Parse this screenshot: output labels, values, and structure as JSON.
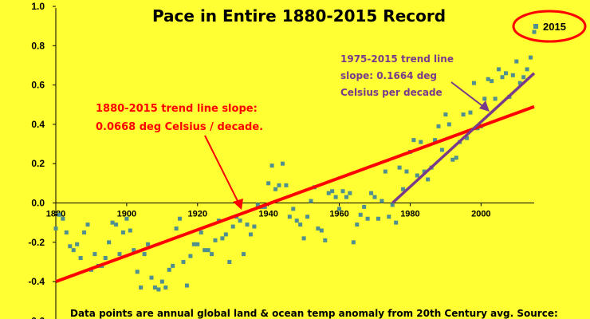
{
  "chart_data": {
    "type": "scatter",
    "title": "Pace in Entire 1880-2015 Record",
    "xlim": [
      1880,
      2015
    ],
    "ylim": [
      -0.6,
      1.0
    ],
    "yticks": [
      "1.0",
      "0.8",
      "0.6",
      "0.4",
      "0.2",
      "0.0",
      "-0.2",
      "-0.4",
      "-0.6"
    ],
    "xticks": [
      "1880",
      "1900",
      "1920",
      "1940",
      "1960",
      "1980",
      "2000"
    ],
    "grid": false,
    "legend": {
      "placement": "top-right",
      "label": "2015"
    },
    "series": [
      {
        "name": "2015",
        "color": "#4f8f8f",
        "x": [
          1880,
          1881,
          1882,
          1883,
          1884,
          1885,
          1886,
          1887,
          1888,
          1889,
          1890,
          1891,
          1892,
          1893,
          1894,
          1895,
          1896,
          1897,
          1898,
          1899,
          1900,
          1901,
          1902,
          1903,
          1904,
          1905,
          1906,
          1907,
          1908,
          1909,
          1910,
          1911,
          1912,
          1913,
          1914,
          1915,
          1916,
          1917,
          1918,
          1919,
          1920,
          1921,
          1922,
          1923,
          1924,
          1925,
          1926,
          1927,
          1928,
          1929,
          1930,
          1931,
          1932,
          1933,
          1934,
          1935,
          1936,
          1937,
          1938,
          1939,
          1940,
          1941,
          1942,
          1943,
          1944,
          1945,
          1946,
          1947,
          1948,
          1949,
          1950,
          1951,
          1952,
          1953,
          1954,
          1955,
          1956,
          1957,
          1958,
          1959,
          1960,
          1961,
          1962,
          1963,
          1964,
          1965,
          1966,
          1967,
          1968,
          1969,
          1970,
          1971,
          1972,
          1973,
          1974,
          1975,
          1976,
          1977,
          1978,
          1979,
          1980,
          1981,
          1982,
          1983,
          1984,
          1985,
          1986,
          1987,
          1988,
          1989,
          1990,
          1991,
          1992,
          1993,
          1994,
          1995,
          1996,
          1997,
          1998,
          1999,
          2000,
          2001,
          2002,
          2003,
          2004,
          2005,
          2006,
          2007,
          2008,
          2009,
          2010,
          2011,
          2012,
          2013,
          2014,
          2015
        ],
        "y": [
          -0.13,
          -0.06,
          -0.08,
          -0.15,
          -0.22,
          -0.24,
          -0.21,
          -0.28,
          -0.15,
          -0.11,
          -0.34,
          -0.26,
          -0.32,
          -0.32,
          -0.28,
          -0.2,
          -0.1,
          -0.11,
          -0.26,
          -0.15,
          -0.08,
          -0.14,
          -0.24,
          -0.35,
          -0.43,
          -0.26,
          -0.21,
          -0.38,
          -0.43,
          -0.44,
          -0.4,
          -0.43,
          -0.34,
          -0.32,
          -0.13,
          -0.08,
          -0.3,
          -0.42,
          -0.27,
          -0.21,
          -0.21,
          -0.15,
          -0.24,
          -0.24,
          -0.26,
          -0.19,
          -0.09,
          -0.18,
          -0.16,
          -0.3,
          -0.12,
          -0.07,
          -0.09,
          -0.26,
          -0.11,
          -0.16,
          -0.12,
          -0.01,
          -0.02,
          -0.02,
          0.1,
          0.19,
          0.07,
          0.09,
          0.2,
          0.09,
          -0.07,
          -0.03,
          -0.09,
          -0.11,
          -0.18,
          -0.07,
          0.01,
          0.08,
          -0.13,
          -0.14,
          -0.19,
          0.05,
          0.06,
          0.03,
          -0.03,
          0.06,
          0.03,
          0.05,
          -0.2,
          -0.11,
          -0.06,
          -0.02,
          -0.08,
          0.05,
          0.03,
          -0.08,
          0.01,
          0.16,
          -0.07,
          -0.01,
          -0.1,
          0.18,
          0.07,
          0.16,
          0.26,
          0.32,
          0.14,
          0.31,
          0.16,
          0.12,
          0.18,
          0.32,
          0.39,
          0.27,
          0.45,
          0.4,
          0.22,
          0.23,
          0.31,
          0.45,
          0.33,
          0.46,
          0.61,
          0.38,
          0.39,
          0.53,
          0.63,
          0.62,
          0.53,
          0.68,
          0.64,
          0.66,
          0.54,
          0.65,
          0.72,
          0.61,
          0.64,
          0.68,
          0.74,
          0.87
        ],
        "highlight": {
          "x": 2015,
          "y": 0.87,
          "label": "2015"
        }
      }
    ],
    "trendlines": [
      {
        "label": "1880-2015 trend line",
        "x": [
          1880,
          2015
        ],
        "y": [
          -0.4,
          0.49
        ],
        "color": "#ff0000"
      },
      {
        "label": "1975-2015 trend line",
        "x": [
          1975,
          2015
        ],
        "y": [
          0.0,
          0.66
        ],
        "color": "#7a3a8a"
      }
    ],
    "annotations": {
      "red_line1": "1880-2015 trend line slope:",
      "red_line2": "0.0668 deg Celsius / decade.",
      "purple_line1": "1975-2015 trend line",
      "purple_line2": "slope: 0.1664 deg",
      "purple_line3": "Celsius per decade"
    },
    "footnote": "Data points are annual global land & ocean temp anomaly from 20th Century avg. Source:"
  }
}
